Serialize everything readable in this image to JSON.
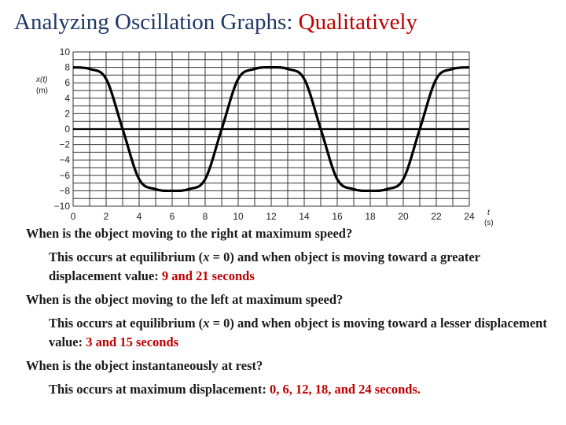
{
  "title": {
    "main": "Analyzing Oscillation Graphs: ",
    "accent": "Qualitatively"
  },
  "colors": {
    "title": "#1f3864",
    "accent": "#c00000",
    "curve": "#000000"
  },
  "chart_data": {
    "type": "line",
    "xlabel": "t",
    "xunit": "(s)",
    "ylabel": "x(t)",
    "yunit": "(m)",
    "xlim": [
      0,
      24
    ],
    "ylim": [
      -10,
      10
    ],
    "grid": true,
    "x_ticks": [
      "0",
      "2",
      "4",
      "6",
      "8",
      "10",
      "12",
      "14",
      "16",
      "18",
      "20",
      "22",
      "24"
    ],
    "y_ticks": [
      "10",
      "8",
      "6",
      "4",
      "2",
      "0",
      "−2",
      "−4",
      "−6",
      "−8",
      "−10"
    ],
    "series": [
      {
        "x": [
          0,
          1,
          2,
          3,
          4,
          5,
          6,
          7,
          8,
          9,
          10,
          11,
          12,
          13,
          14,
          15,
          16,
          17,
          18,
          19,
          20,
          21,
          22,
          23,
          24
        ],
        "y": [
          8,
          7.8,
          6.5,
          0,
          -6.5,
          -7.8,
          -8,
          -7.8,
          -6.5,
          0,
          6.5,
          7.8,
          8,
          7.8,
          6.5,
          0,
          -6.5,
          -7.8,
          -8,
          -7.8,
          -6.5,
          0,
          6.5,
          7.8,
          8
        ]
      }
    ]
  },
  "qa": [
    {
      "question": "When is the object moving to the right at maximum speed?",
      "answer_pre": "This occurs at equilibrium (",
      "answer_var": "x",
      "answer_mid": " = 0) and when object is moving toward a greater displacement value: ",
      "answer_red": "9 and 21 seconds"
    },
    {
      "question": "When is the object moving to the left at maximum speed?",
      "answer_pre": "This occurs at equilibrium (",
      "answer_var": "x",
      "answer_mid": " = 0) and when object is moving toward a lesser displacement value: ",
      "answer_red": "3 and 15 seconds"
    },
    {
      "question": "When is the object instantaneously at rest?",
      "answer_pre": "This occurs at maximum displacement: ",
      "answer_red": "0, 6, 12, 18, and 24 seconds."
    }
  ]
}
